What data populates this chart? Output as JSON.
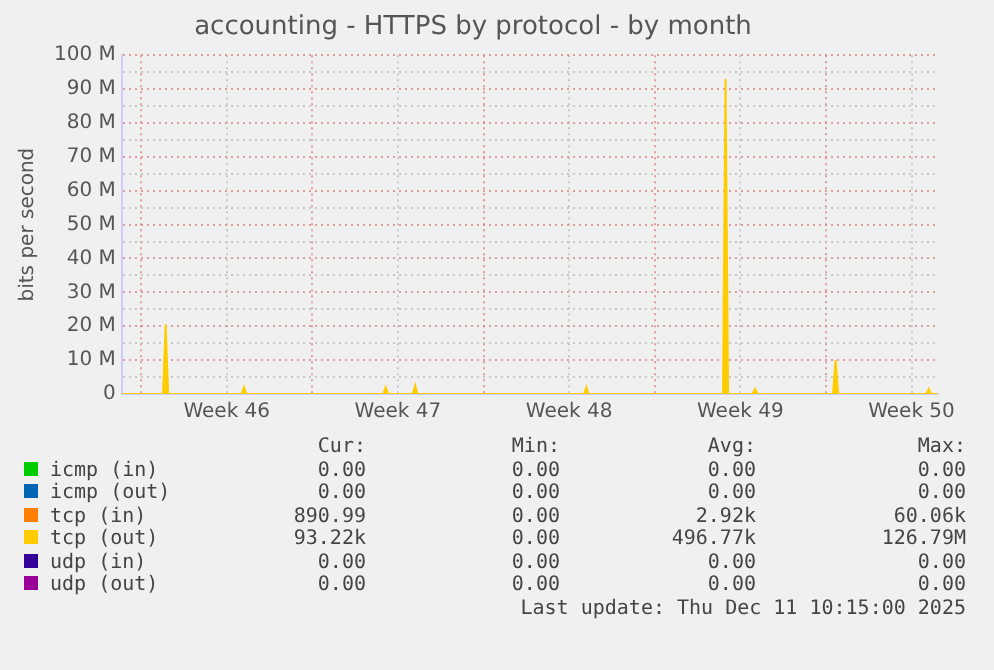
{
  "chart_data": {
    "type": "area",
    "title": "accounting - HTTPS by protocol - by month",
    "ylabel": "bits per second",
    "xlim": [
      "2025-11-09T05:00",
      "2025-12-12T14:00"
    ],
    "xticks": [
      {
        "value": "2025-11-10T00:00",
        "label": null
      },
      {
        "value": "2025-11-13T12:00",
        "label": "Week 46"
      },
      {
        "value": "2025-11-17T00:00",
        "label": null
      },
      {
        "value": "2025-11-20T12:00",
        "label": "Week 47"
      },
      {
        "value": "2025-11-24T00:00",
        "label": null
      },
      {
        "value": "2025-11-27T12:00",
        "label": "Week 48"
      },
      {
        "value": "2025-12-01T00:00",
        "label": null
      },
      {
        "value": "2025-12-04T12:00",
        "label": "Week 49"
      },
      {
        "value": "2025-12-08T00:00",
        "label": null
      },
      {
        "value": "2025-12-11T12:00",
        "label": "Week 50"
      }
    ],
    "ylim": [
      0,
      100
    ],
    "yticks": [
      {
        "value": 0,
        "label": "0"
      },
      {
        "value": 5,
        "label": null
      },
      {
        "value": 10,
        "label": "10 M"
      },
      {
        "value": 15,
        "label": null
      },
      {
        "value": 20,
        "label": "20 M"
      },
      {
        "value": 25,
        "label": null
      },
      {
        "value": 30,
        "label": "30 M"
      },
      {
        "value": 35,
        "label": null
      },
      {
        "value": 40,
        "label": "40 M"
      },
      {
        "value": 45,
        "label": null
      },
      {
        "value": 50,
        "label": "50 M"
      },
      {
        "value": 55,
        "label": null
      },
      {
        "value": 60,
        "label": "60 M"
      },
      {
        "value": 65,
        "label": null
      },
      {
        "value": 70,
        "label": "70 M"
      },
      {
        "value": 75,
        "label": null
      },
      {
        "value": 80,
        "label": "80 M"
      },
      {
        "value": 85,
        "label": null
      },
      {
        "value": 90,
        "label": "90 M"
      },
      {
        "value": 95,
        "label": null
      },
      {
        "value": 100,
        "label": "100 M"
      }
    ],
    "grid": true,
    "legend": "bottom",
    "series": [
      {
        "name": "icmp (in)",
        "color": "#00cc00"
      },
      {
        "name": "icmp (out)",
        "color": "#0066b3"
      },
      {
        "name": "tcp (in)",
        "color": "#ff8000"
      },
      {
        "name": "tcp (out)",
        "color": "#ffcc00",
        "x": [
          "2025-11-09T05:00",
          "2025-11-10T21:30",
          "2025-11-11T00:00",
          "2025-11-11T02:30",
          "2025-11-14T02:30",
          "2025-11-14T05:00",
          "2025-11-14T07:00",
          "2025-11-19T21:30",
          "2025-11-20T00:00",
          "2025-11-20T02:30",
          "2025-11-21T02:30",
          "2025-11-21T05:00",
          "2025-11-21T07:00",
          "2025-11-28T02:30",
          "2025-11-28T05:00",
          "2025-11-28T07:00",
          "2025-12-03T19:00",
          "2025-12-03T21:30",
          "2025-12-04T00:00",
          "2025-12-05T00:00",
          "2025-12-05T02:30",
          "2025-12-05T05:00",
          "2025-12-08T07:00",
          "2025-12-08T09:30",
          "2025-12-08T12:00",
          "2025-12-12T02:30",
          "2025-12-12T05:00",
          "2025-12-12T07:00",
          "2025-12-12T14:00"
        ],
        "values": [
          0,
          0,
          20.5,
          0,
          0,
          2,
          0,
          0,
          2,
          0,
          0,
          2.5,
          0,
          0,
          2,
          0,
          0,
          93,
          0,
          0,
          1.5,
          0,
          0,
          10,
          0,
          0,
          1.5,
          0,
          0
        ]
      },
      {
        "name": "udp (in)",
        "color": "#330099"
      },
      {
        "name": "udp (out)",
        "color": "#990099"
      }
    ],
    "annotations": [
      "Cur:",
      "Min:",
      "Avg:",
      "Max:",
      "0.00",
      "0.00",
      "0.00",
      "0.00",
      "0.00",
      "0.00",
      "0.00",
      "0.00",
      "890.99",
      "0.00",
      "2.92k",
      "60.06k",
      "93.22k",
      "0.00",
      "496.77k",
      "126.79M",
      "0.00",
      "0.00",
      "0.00",
      "0.00",
      "0.00",
      "0.00",
      "0.00",
      "0.00",
      "Last update: Thu Dec 11 10:15:00 2025"
    ]
  }
}
